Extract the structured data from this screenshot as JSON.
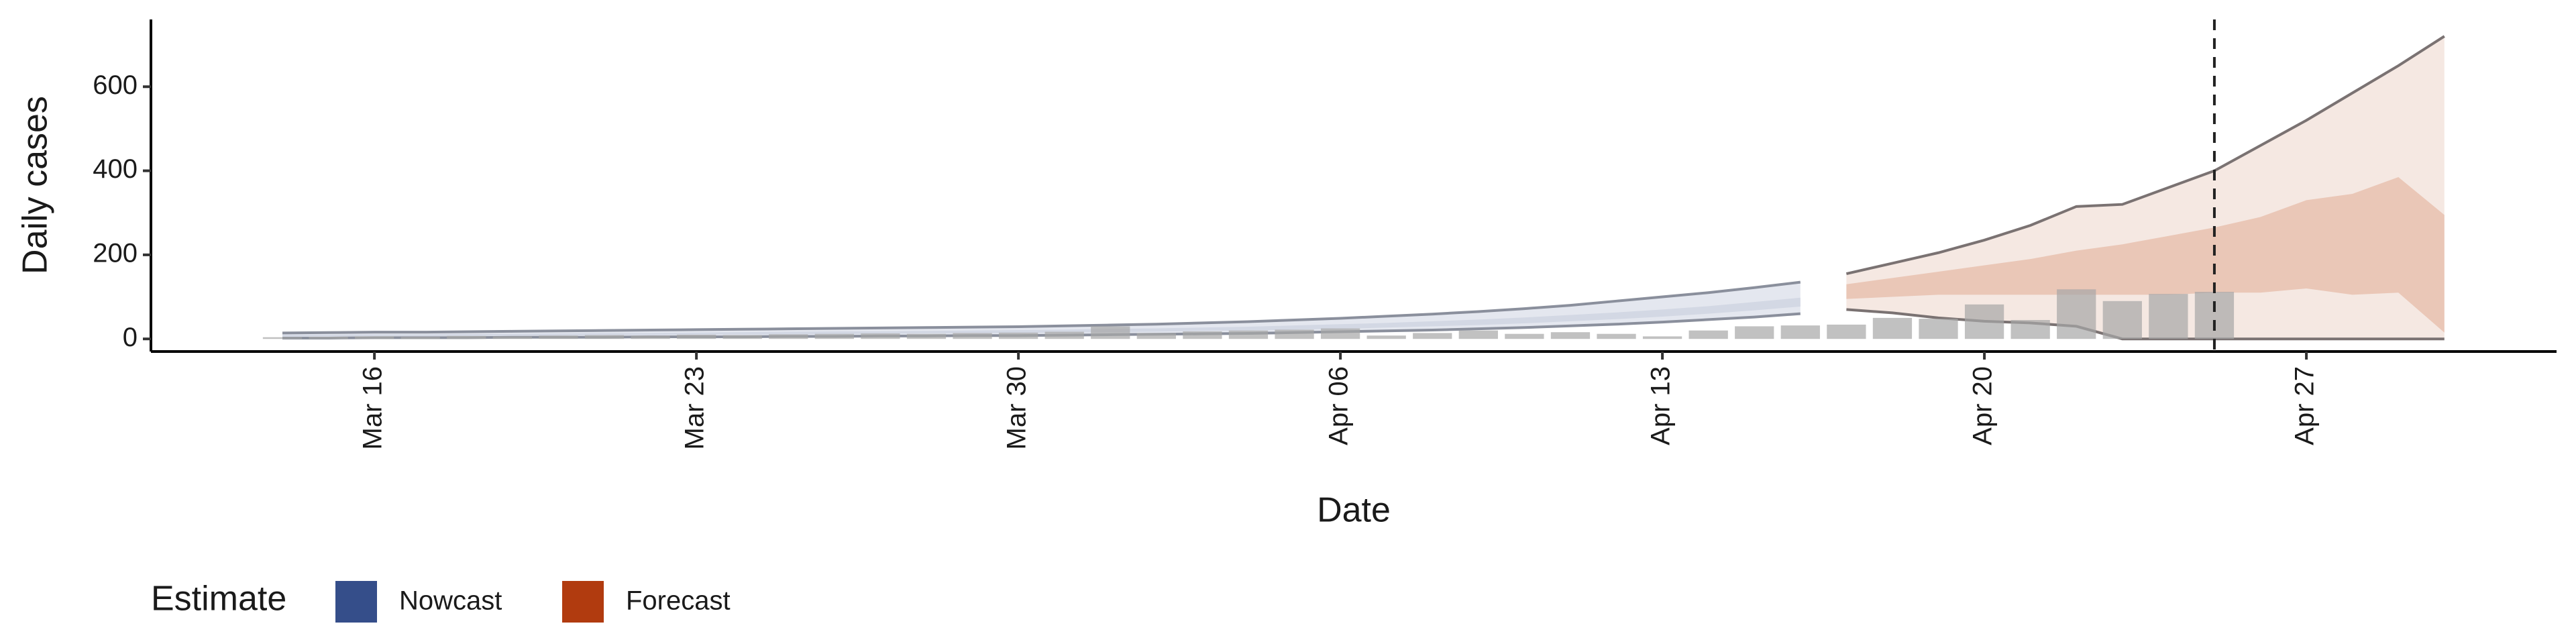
{
  "chart_data": {
    "type": "interval",
    "xlabel": "Date",
    "ylabel": "Daily cases",
    "ylim": [
      -30,
      760
    ],
    "yticks": [
      0,
      200,
      400,
      600
    ],
    "xticks": [
      "Mar 16",
      "Mar 23",
      "Mar 30",
      "Apr 06",
      "Apr 13",
      "Apr 20",
      "Apr 27"
    ],
    "vline": "Apr 25",
    "legend": {
      "title": "Estimate",
      "position": "bottom"
    },
    "bars": {
      "color": "#a6a6a6",
      "x": [
        "Mar 14",
        "Mar 15",
        "Mar 16",
        "Mar 17",
        "Mar 18",
        "Mar 19",
        "Mar 20",
        "Mar 21",
        "Mar 22",
        "Mar 23",
        "Mar 24",
        "Mar 25",
        "Mar 26",
        "Mar 27",
        "Mar 28",
        "Mar 29",
        "Mar 30",
        "Mar 31",
        "Apr 01",
        "Apr 02",
        "Apr 03",
        "Apr 04",
        "Apr 05",
        "Apr 06",
        "Apr 07",
        "Apr 08",
        "Apr 09",
        "Apr 10",
        "Apr 11",
        "Apr 12",
        "Apr 13",
        "Apr 14",
        "Apr 15",
        "Apr 16",
        "Apr 17",
        "Apr 18",
        "Apr 19",
        "Apr 20",
        "Apr 21",
        "Apr 22",
        "Apr 23",
        "Apr 24",
        "Apr 25"
      ],
      "values": [
        4,
        5,
        6,
        5,
        7,
        6,
        8,
        9,
        8,
        10,
        9,
        11,
        12,
        13,
        12,
        14,
        15,
        17,
        30,
        14,
        18,
        20,
        22,
        25,
        8,
        14,
        20,
        12,
        16,
        12,
        6,
        20,
        30,
        32,
        34,
        50,
        48,
        82,
        45,
        118,
        90,
        107,
        112
      ]
    },
    "series": [
      {
        "name": "Nowcast",
        "color": "#354e8a",
        "band_90": "#e4e7ef",
        "band_50": "#d3d8e4",
        "x": [
          "Mar 14",
          "Mar 15",
          "Mar 16",
          "Mar 17",
          "Mar 18",
          "Mar 19",
          "Mar 20",
          "Mar 21",
          "Mar 22",
          "Mar 23",
          "Mar 24",
          "Mar 25",
          "Mar 26",
          "Mar 27",
          "Mar 28",
          "Mar 29",
          "Mar 30",
          "Mar 31",
          "Apr 01",
          "Apr 02",
          "Apr 03",
          "Apr 04",
          "Apr 05",
          "Apr 06",
          "Apr 07",
          "Apr 08",
          "Apr 09",
          "Apr 10",
          "Apr 11",
          "Apr 12",
          "Apr 13",
          "Apr 14",
          "Apr 15",
          "Apr 16"
        ],
        "upper_90": [
          14,
          15,
          16,
          16,
          17,
          18,
          19,
          20,
          21,
          22,
          23,
          24,
          25,
          26,
          27,
          28,
          29,
          31,
          33,
          35,
          38,
          41,
          45,
          49,
          54,
          59,
          65,
          72,
          80,
          90,
          100,
          110,
          122,
          135
        ],
        "lower_90": [
          2,
          2,
          3,
          3,
          3,
          4,
          4,
          4,
          5,
          5,
          5,
          6,
          6,
          7,
          7,
          8,
          8,
          9,
          10,
          11,
          12,
          13,
          15,
          17,
          19,
          21,
          24,
          27,
          31,
          35,
          40,
          46,
          52,
          60
        ],
        "upper_50": [
          10,
          10,
          11,
          11,
          12,
          12,
          13,
          14,
          14,
          15,
          16,
          17,
          18,
          18,
          19,
          20,
          21,
          22,
          24,
          25,
          27,
          29,
          32,
          35,
          38,
          42,
          46,
          51,
          57,
          63,
          70,
          78,
          88,
          98
        ],
        "lower_50": [
          6,
          6,
          7,
          7,
          7,
          8,
          8,
          9,
          9,
          10,
          10,
          11,
          11,
          12,
          13,
          13,
          14,
          15,
          16,
          17,
          19,
          20,
          22,
          24,
          27,
          30,
          33,
          37,
          42,
          47,
          53,
          60,
          68,
          77
        ]
      },
      {
        "name": "Forecast",
        "color": "#b13b0f",
        "band_90": "#f5e8e2",
        "band_50": "#eac7b7",
        "x": [
          "Apr 17",
          "Apr 18",
          "Apr 19",
          "Apr 20",
          "Apr 21",
          "Apr 22",
          "Apr 23",
          "Apr 24",
          "Apr 25",
          "Apr 26",
          "Apr 27",
          "Apr 28",
          "Apr 29",
          "Apr 30"
        ],
        "upper_90": [
          155,
          180,
          205,
          235,
          270,
          315,
          320,
          360,
          400,
          460,
          520,
          585,
          650,
          720
        ],
        "lower_90": [
          70,
          62,
          50,
          42,
          38,
          30,
          0,
          0,
          0,
          0,
          0,
          0,
          0,
          0
        ],
        "upper_50": [
          130,
          145,
          160,
          175,
          190,
          210,
          225,
          245,
          265,
          290,
          330,
          345,
          385,
          295
        ],
        "lower_50": [
          95,
          100,
          105,
          105,
          105,
          105,
          105,
          105,
          110,
          110,
          120,
          105,
          110,
          15
        ]
      }
    ]
  }
}
